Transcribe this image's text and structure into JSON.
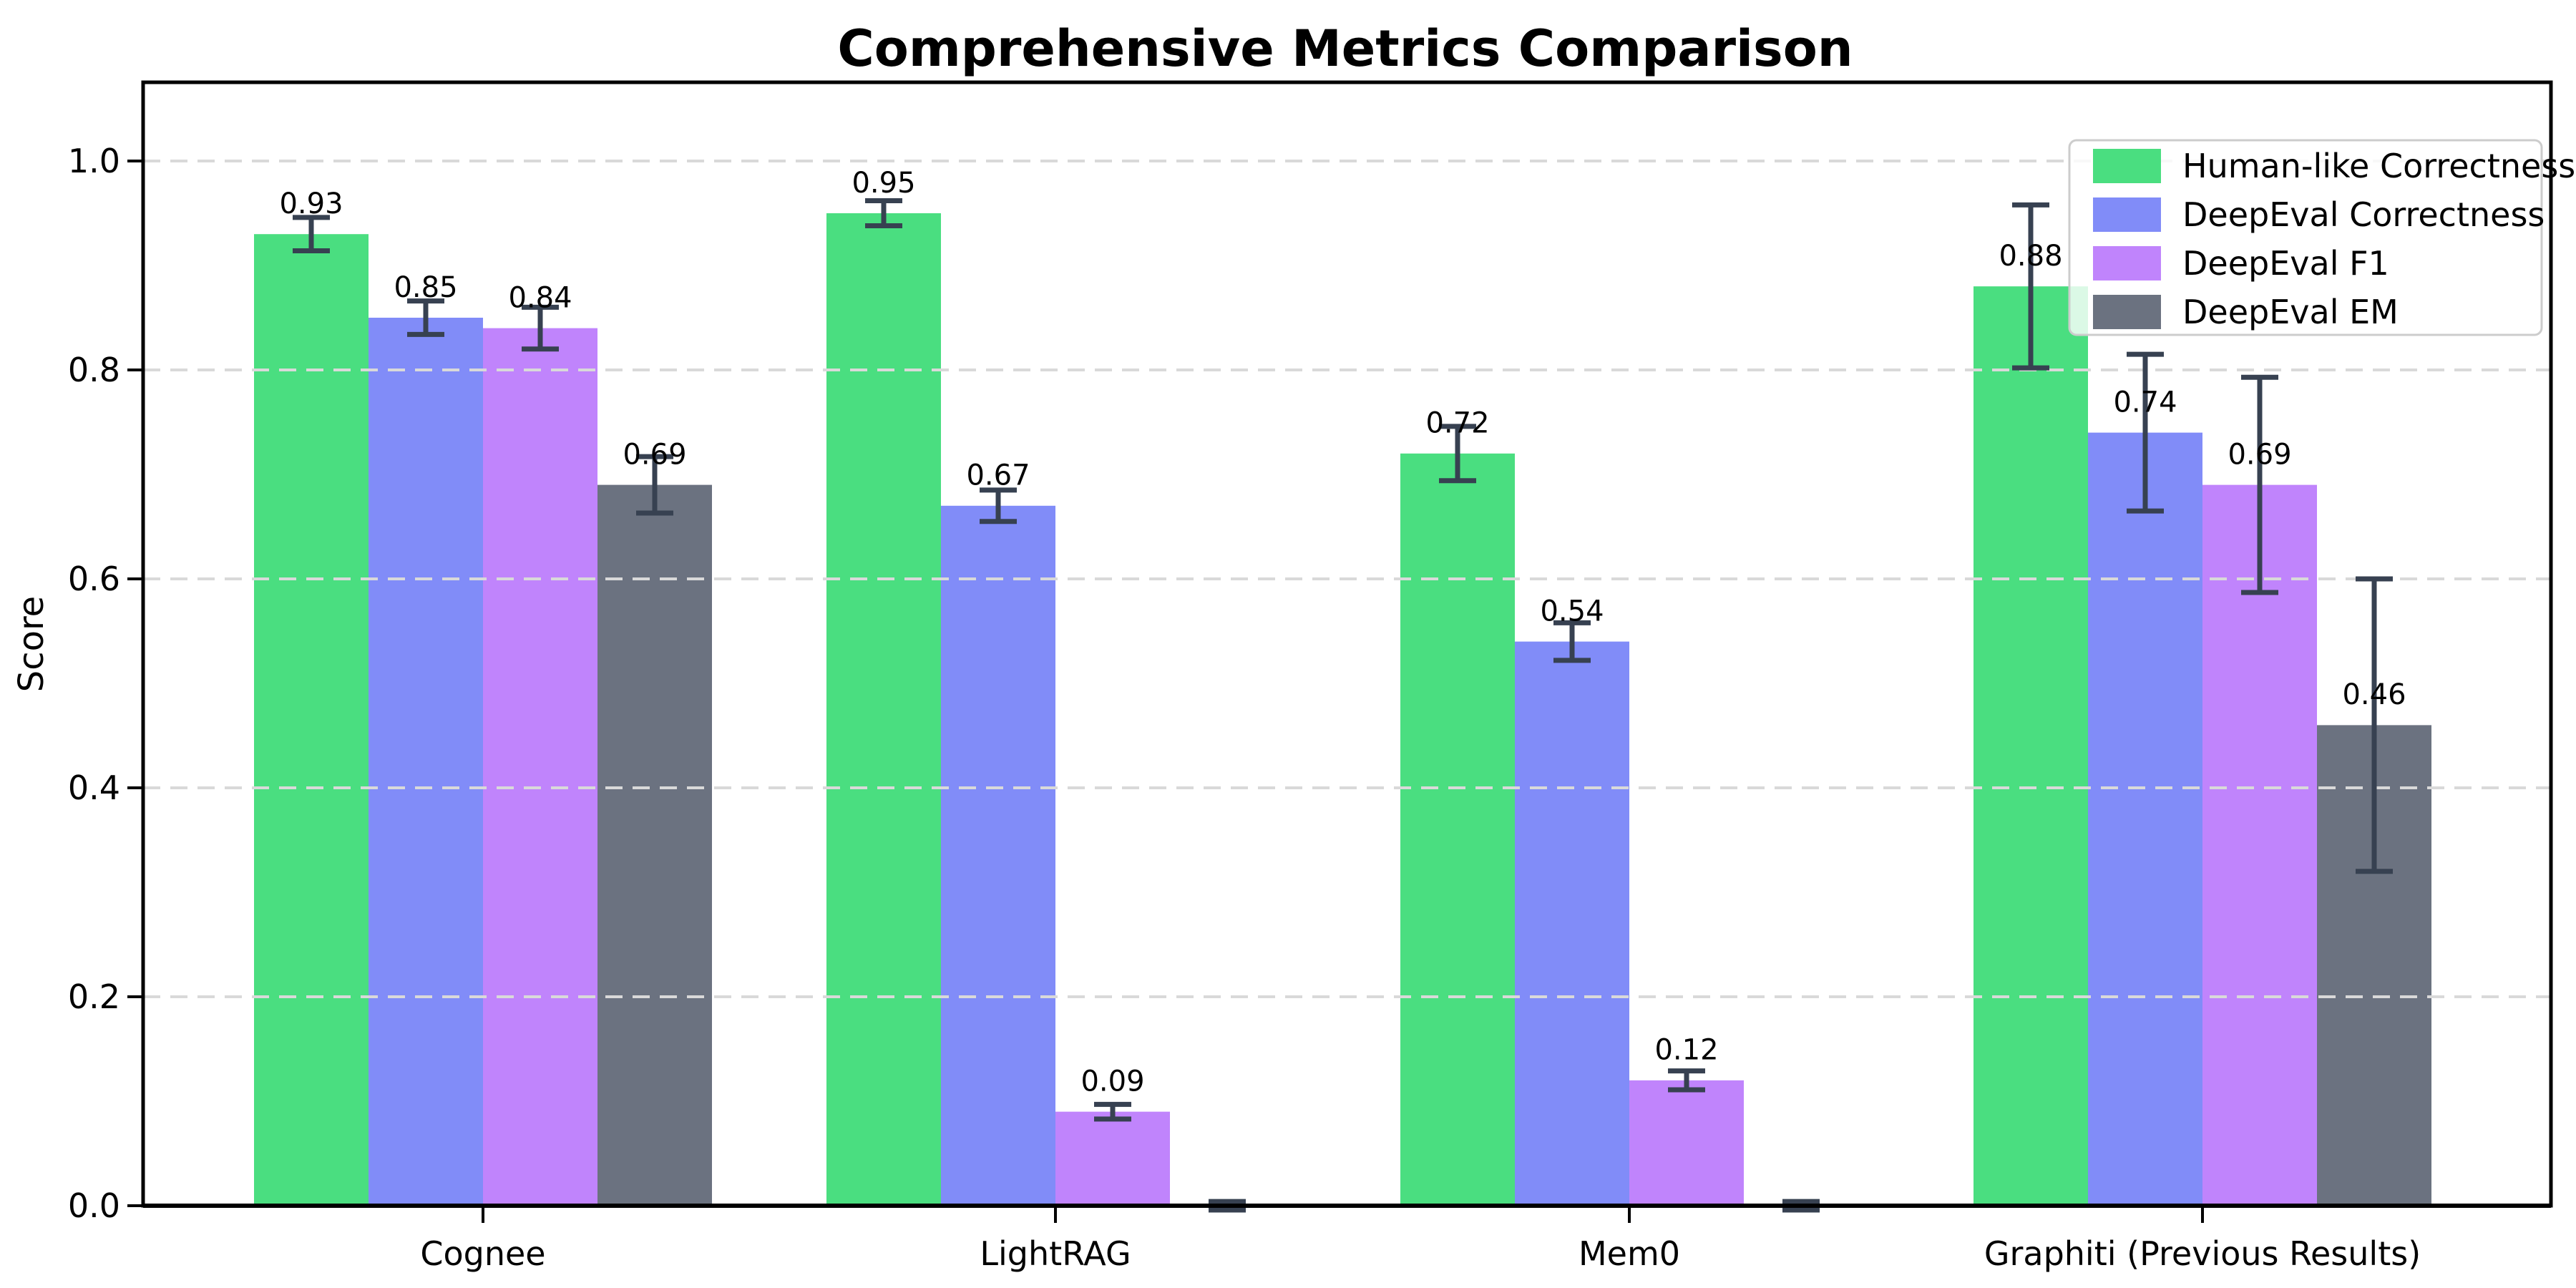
{
  "chart_data": {
    "type": "bar",
    "title": "Comprehensive Metrics Comparison",
    "ylabel": "Score",
    "xlabel": "",
    "categories": [
      "Cognee",
      "LightRAG",
      "Mem0",
      "Graphiti (Previous Results)"
    ],
    "series": [
      {
        "name": "Human-like Correctness",
        "color": "#4ade80",
        "values": [
          0.93,
          0.95,
          0.72,
          0.88
        ],
        "errors": [
          0.016,
          0.012,
          0.026,
          0.078
        ],
        "labels": [
          "0.93",
          "0.95",
          "0.72",
          "0.88"
        ]
      },
      {
        "name": "DeepEval Correctness",
        "color": "#818cf8",
        "values": [
          0.85,
          0.67,
          0.54,
          0.74
        ],
        "errors": [
          0.016,
          0.015,
          0.018,
          0.075
        ],
        "labels": [
          "0.85",
          "0.67",
          "0.54",
          "0.74"
        ]
      },
      {
        "name": "DeepEval F1",
        "color": "#c084fc",
        "values": [
          0.84,
          0.09,
          0.12,
          0.69
        ],
        "errors": [
          0.02,
          0.007,
          0.009,
          0.103
        ],
        "labels": [
          "0.84",
          "0.09",
          "0.12",
          "0.69"
        ]
      },
      {
        "name": "DeepEval EM",
        "color": "#6b7280",
        "values": [
          0.69,
          0.0,
          0.0,
          0.46
        ],
        "errors": [
          0.027,
          0.004,
          0.004,
          0.14
        ],
        "labels": [
          "0.69",
          "",
          "",
          "0.46"
        ]
      }
    ],
    "ylim": [
      0,
      1.075
    ],
    "yticks": [
      0.0,
      0.2,
      0.4,
      0.6,
      0.8,
      1.0
    ],
    "ytick_labels": [
      "0.0",
      "0.2",
      "0.4",
      "0.6",
      "0.8",
      "1.0"
    ],
    "grid": "horizontal-dashed-drawn-above-bars",
    "legend_position": "upper-right"
  },
  "style": {
    "background": "#ffffff",
    "axis_color": "#000000",
    "grid_color": "#d9d9d9",
    "error_bar_color": "#374151",
    "legend_border_color": "#cccccc",
    "legend_background": "rgba(255,255,255,0.8)"
  }
}
